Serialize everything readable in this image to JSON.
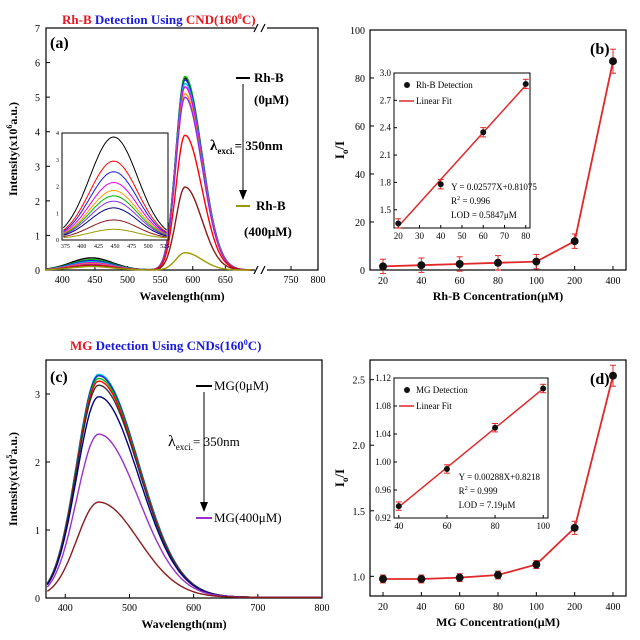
{
  "figure": {
    "panel_a_title": {
      "part1": "Rh-B",
      "part2": " Detection Using ",
      "part3": "CND(160",
      "part4": "0",
      "part5": "C)"
    },
    "panel_c_title": {
      "part1": "MG",
      "part2": " Detection Using ",
      "part3": "CNDs(160",
      "part4": "0",
      "part5": "C)"
    }
  },
  "colors": {
    "red_title": "#e8141e",
    "blue_title": "#1a1adc",
    "fit_red": "#e0282a",
    "point_black": "#111111",
    "olive": "#9a9a00",
    "purple": "#9b30c8"
  },
  "chart_data": [
    {
      "type": "line",
      "panel_label": "(a)",
      "xlabel": "Wavelength(nm)",
      "ylabel": {
        "main": "Intensity(x10",
        "sup": "6",
        "tail": "a.u.)"
      },
      "xlim": [
        375,
        800
      ],
      "ylim": [
        0,
        7
      ],
      "axis_break_x": 700,
      "x_ticks": [
        "400",
        "450",
        "500",
        "550",
        "600",
        "650",
        "750",
        "800"
      ],
      "y_ticks": [
        "0",
        "1",
        "2",
        "3",
        "4",
        "5",
        "6",
        "7"
      ],
      "annotations": {
        "top_label": "Rh-B",
        "top_conc": "(0μM)",
        "lambda": "λ",
        "lambda_sub": "exci.",
        "lambda_val": "= 350nm",
        "bottom_label": "Rh-B",
        "bottom_conc": "(400μM)"
      },
      "series": [
        {
          "color": "#000000",
          "peak": 5.55,
          "cd": 0.35
        },
        {
          "color": "#00b400",
          "peak": 5.6,
          "cd": 0.3
        },
        {
          "color": "#1a1adc",
          "peak": 5.5,
          "cd": 0.27
        },
        {
          "color": "#00c8c8",
          "peak": 5.4,
          "cd": 0.24
        },
        {
          "color": "#e600e6",
          "peak": 5.3,
          "cd": 0.21
        },
        {
          "color": "#ff9900",
          "peak": 5.1,
          "cd": 0.18
        },
        {
          "color": "#8a2be2",
          "peak": 5.0,
          "cd": 0.16
        },
        {
          "color": "#ff0000",
          "peak": 3.9,
          "cd": 0.14
        },
        {
          "color": "#8b1a1a",
          "peak": 2.4,
          "cd": 0.12
        },
        {
          "color": "#9a9a00",
          "peak": 0.5,
          "cd": 0.1
        }
      ],
      "inset": {
        "xlim": [
          370,
          530
        ],
        "ylim": [
          0,
          4
        ],
        "x_ticks": [
          "375",
          "400",
          "425",
          "450",
          "475",
          "500",
          "525"
        ],
        "y_ticks": [
          "0",
          "1",
          "2",
          "3",
          "4"
        ],
        "peaks": [
          3.8,
          2.9,
          2.5,
          2.1,
          1.8,
          1.6,
          1.4,
          1.15,
          0.7,
          0.35
        ],
        "colors": [
          "#000000",
          "#ff0000",
          "#1a1adc",
          "#e600e6",
          "#ff9900",
          "#00b400",
          "#8a2be2",
          "#000080",
          "#8b1a1a",
          "#9a9a00"
        ]
      }
    },
    {
      "type": "line",
      "panel_label": "(b)",
      "xlabel": "Rh-B Concentration(μM)",
      "ylabel": {
        "main": "I",
        "sub1": "o",
        "tail": "/I"
      },
      "categories": [
        "20",
        "40",
        "60",
        "80",
        "100",
        "200",
        "400"
      ],
      "values": [
        1.5,
        2.0,
        2.5,
        3.0,
        3.5,
        12.0,
        87.0
      ],
      "errors": [
        3,
        3,
        3,
        3,
        3,
        3,
        5
      ],
      "ylim": [
        0,
        100
      ],
      "y_ticks": [
        "0",
        "20",
        "40",
        "60",
        "80",
        "100"
      ],
      "inset": {
        "legend": [
          "Rh-B Detection",
          "Linear Fit"
        ],
        "x": [
          20,
          40,
          60,
          80
        ],
        "y": [
          1.35,
          1.78,
          2.35,
          2.88
        ],
        "xlim": [
          18,
          82
        ],
        "ylim": [
          1.3,
          3.0
        ],
        "x_ticks": [
          "20",
          "30",
          "40",
          "50",
          "60",
          "70",
          "80"
        ],
        "y_ticks": [
          "1.5",
          "1.8",
          "2.1",
          "2.4",
          "2.7",
          "3.0"
        ],
        "fit": {
          "eq": "Y = 0.02577X+0.81075",
          "r2_label": "R",
          "r2_sup": "2",
          "r2_val": " = 0.996",
          "lod": "LOD = 0.5847μM"
        }
      }
    },
    {
      "type": "line",
      "panel_label": "(c)",
      "xlabel": "Wavelength(nm)",
      "ylabel": {
        "main": "Intensity(x10",
        "sup": "5",
        "tail": "a.u.)"
      },
      "xlim": [
        370,
        800
      ],
      "ylim": [
        0,
        3.5
      ],
      "x_ticks": [
        "400",
        "500",
        "600",
        "700",
        "800"
      ],
      "y_ticks": [
        "0",
        "1",
        "2",
        "3"
      ],
      "annotations": {
        "top_label": "MG(0μM)",
        "lambda": "λ",
        "lambda_sub": "exci.",
        "lambda_val": "= 350nm",
        "bottom_label": "MG(400μM)"
      },
      "series": [
        {
          "color": "#00c8c8",
          "peak": 3.28
        },
        {
          "color": "#1a1adc",
          "peak": 3.26
        },
        {
          "color": "#00b400",
          "peak": 3.22
        },
        {
          "color": "#ff0000",
          "peak": 3.18
        },
        {
          "color": "#333333",
          "peak": 3.12
        },
        {
          "color": "#000080",
          "peak": 2.95
        },
        {
          "color": "#9b30c8",
          "peak": 2.4
        },
        {
          "color": "#8b1a1a",
          "peak": 1.4
        }
      ]
    },
    {
      "type": "line",
      "panel_label": "(d)",
      "xlabel": "MG Concentration(μM)",
      "ylabel": {
        "main": "I",
        "sub1": "o",
        "tail": "/I"
      },
      "categories": [
        "20",
        "40",
        "60",
        "80",
        "100",
        "200",
        "400"
      ],
      "values": [
        0.98,
        0.98,
        0.99,
        1.01,
        1.09,
        1.37,
        2.53
      ],
      "errors": [
        0.03,
        0.03,
        0.03,
        0.03,
        0.03,
        0.05,
        0.08
      ],
      "ylim": [
        0.85,
        2.65
      ],
      "y_ticks": [
        "1.0",
        "1.5",
        "2.0",
        "2.5"
      ],
      "inset": {
        "legend": [
          "MG Detection",
          "Linear Fit"
        ],
        "x": [
          40,
          60,
          80,
          100
        ],
        "y": [
          0.937,
          0.99,
          1.049,
          1.105
        ],
        "xlim": [
          38,
          102
        ],
        "ylim": [
          0.92,
          1.12
        ],
        "x_ticks": [
          "40",
          "60",
          "80",
          "100"
        ],
        "y_ticks": [
          "0.92",
          "0.96",
          "1.00",
          "1.04",
          "1.08",
          "1.12"
        ],
        "fit": {
          "eq": "Y = 0.00288X+0.8218",
          "r2_label": "R",
          "r2_sup": "2",
          "r2_val": " = 0.999",
          "lod": "LOD = 7.19μM"
        }
      }
    }
  ]
}
